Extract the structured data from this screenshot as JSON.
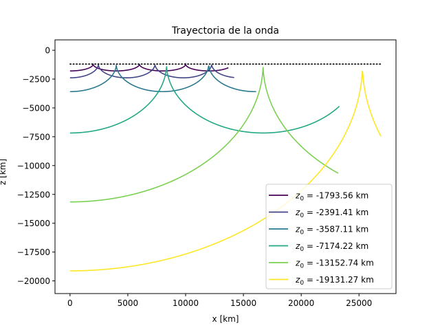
{
  "chart_data": {
    "type": "line",
    "title": "Trayectoria de la onda",
    "xlabel": "x [km]",
    "ylabel": "z [km]",
    "xlim": [
      -1300,
      28200
    ],
    "ylim": [
      -21100,
      900
    ],
    "xticks": [
      0,
      5000,
      10000,
      15000,
      20000,
      25000
    ],
    "yticks": [
      0,
      -2500,
      -5000,
      -7500,
      -10000,
      -12500,
      -15000,
      -17500,
      -20000
    ],
    "xtick_labels": [
      "0",
      "5000",
      "10000",
      "15000",
      "20000",
      "25000"
    ],
    "ytick_labels": [
      "0",
      "−2500",
      "−5000",
      "−7500",
      "−10000",
      "−12500",
      "−15000",
      "−17500",
      "−20000"
    ],
    "grid": false,
    "legend_position": "lower-right",
    "reference_line": {
      "style": "dotted",
      "color": "#000000",
      "z": -1196,
      "x_range": [
        0,
        27000
      ]
    },
    "series": [
      {
        "name": "z0 = -1793.56 km",
        "color": "#440154",
        "z0": -1793.56,
        "arc_half_width": 2000,
        "x_end": 13700
      },
      {
        "name": "z0 = -2391.41 km",
        "color": "#414487",
        "z0": -2391.41,
        "arc_half_width": 2450,
        "x_end": 14200
      },
      {
        "name": "z0 = -3587.11 km",
        "color": "#2a788e",
        "z0": -3587.11,
        "arc_half_width": 4000,
        "x_end": 16100
      },
      {
        "name": "z0 = -7174.22 km",
        "color": "#22a884",
        "z0": -7174.22,
        "arc_half_width": 8350,
        "x_end": 23300
      },
      {
        "name": "z0 = -13152.74 km",
        "color": "#7ad151",
        "z0": -13152.74,
        "arc_half_width": 16700,
        "x_end": 23200
      },
      {
        "name": "z0 = -19131.27 km",
        "color": "#fde725",
        "z0": -19131.27,
        "arc_half_width": 25300,
        "x_end": 26900
      }
    ],
    "legend_entries": [
      {
        "prefix": "z",
        "sub": "0",
        "suffix": " = -1793.56 km"
      },
      {
        "prefix": "z",
        "sub": "0",
        "suffix": " = -2391.41 km"
      },
      {
        "prefix": "z",
        "sub": "0",
        "suffix": " = -3587.11 km"
      },
      {
        "prefix": "z",
        "sub": "0",
        "suffix": " = -7174.22 km"
      },
      {
        "prefix": "z",
        "sub": "0",
        "suffix": " = -13152.74 km"
      },
      {
        "prefix": "z",
        "sub": "0",
        "suffix": " = -19131.27 km"
      }
    ]
  }
}
